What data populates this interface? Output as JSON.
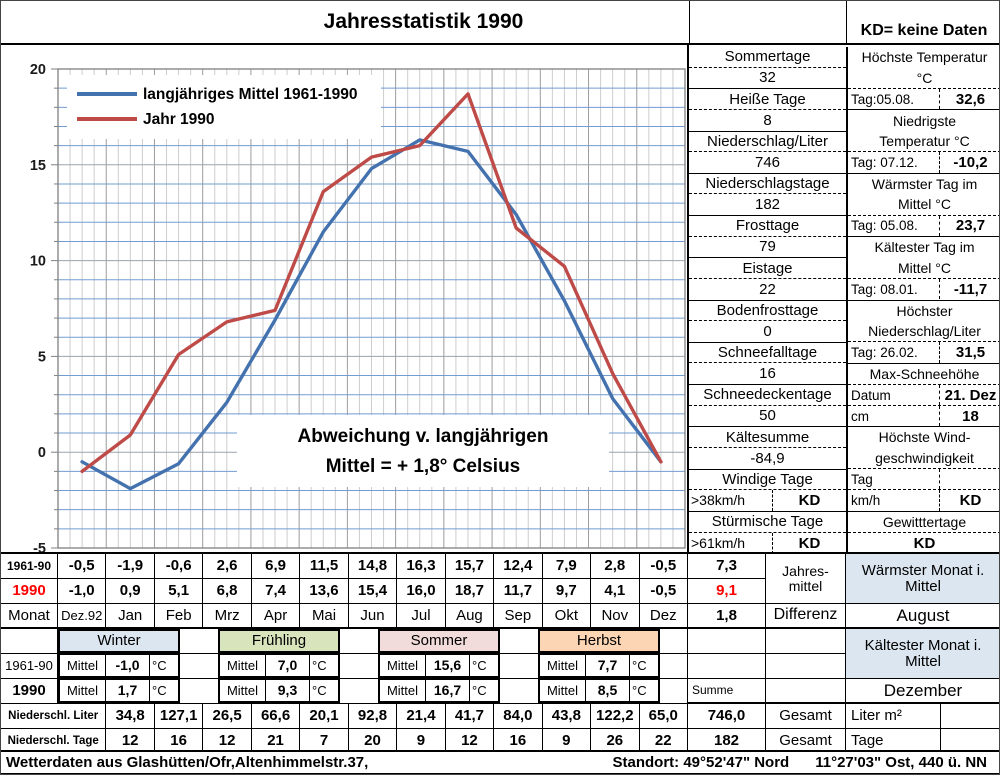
{
  "title": "Jahresstatistik 1990",
  "kd_note": "KD= keine Daten",
  "chart_data": {
    "type": "line",
    "categories": [
      "Dez.92",
      "Jan",
      "Feb",
      "Mrz",
      "Apr",
      "Mai",
      "Jun",
      "Jul",
      "Aug",
      "Sep",
      "Okt",
      "Nov",
      "Dez"
    ],
    "series": [
      {
        "name": "langjähriges Mittel 1961-1990",
        "color": "#4472AE",
        "values": [
          -0.5,
          -1.9,
          -0.6,
          2.6,
          6.9,
          11.5,
          14.8,
          16.3,
          15.7,
          12.4,
          7.9,
          2.8,
          -0.5
        ]
      },
      {
        "name": "Jahr 1990",
        "color": "#BE4B48",
        "values": [
          -1.0,
          0.9,
          5.1,
          6.8,
          7.4,
          13.6,
          15.4,
          16.0,
          18.7,
          11.7,
          9.7,
          4.1,
          -0.5
        ]
      }
    ],
    "ylim": [
      -5,
      20
    ],
    "ytick_interval": 5,
    "ytick_labels": [
      "20",
      "15",
      "10",
      "5",
      "0",
      "-5"
    ],
    "grid": true,
    "legend_position": "top-left",
    "annotation_line1": "Abweichung v. langjährigen",
    "annotation_line2": "Mittel = + 1,8° Celsius"
  },
  "stats_left": [
    {
      "name": "Sommertage",
      "value": "32"
    },
    {
      "name": "Heiße Tage",
      "value": "8"
    },
    {
      "name": "Niederschlag/Liter",
      "value": "746"
    },
    {
      "name": "Niederschlagstage",
      "value": "182"
    },
    {
      "name": "Frosttage",
      "value": "79"
    },
    {
      "name": "Eistage",
      "value": "22"
    },
    {
      "name": "Bodenfrosttage",
      "value": "0"
    },
    {
      "name": "Schneefalltage",
      "value": "16"
    },
    {
      "name": "Schneedeckentage",
      "value": "50"
    },
    {
      "name": "Kältesumme",
      "value": "-84,9"
    },
    {
      "name": "Windige Tage",
      "label": ">38km/h",
      "value": "KD"
    },
    {
      "name": "Stürmische Tage",
      "label": ">61km/h",
      "value": "KD"
    }
  ],
  "stats_right": [
    {
      "title": [
        "Höchste Temperatur",
        "°C"
      ],
      "rows": [
        {
          "label": "Tag:05.08.",
          "value": "32,6"
        }
      ]
    },
    {
      "title": [
        "Niedrigste",
        "Temperatur °C"
      ],
      "rows": [
        {
          "label": "Tag: 07.12.",
          "value": "-10,2"
        }
      ]
    },
    {
      "title": [
        "Wärmster Tag im",
        "Mittel °C"
      ],
      "rows": [
        {
          "label": "Tag: 05.08.",
          "value": "23,7"
        }
      ]
    },
    {
      "title": [
        "Kältester Tag im",
        "Mittel °C"
      ],
      "rows": [
        {
          "label": "Tag: 08.01.",
          "value": "-11,7"
        }
      ]
    },
    {
      "title": [
        "Höchster",
        "Niederschlag/Liter"
      ],
      "rows": [
        {
          "label": "Tag: 26.02.",
          "value": "31,5"
        }
      ]
    },
    {
      "title": [
        "Max-Schneehöhe"
      ],
      "rows": [
        {
          "label": "Datum",
          "value": "21. Dez"
        },
        {
          "label": "cm",
          "value": "18"
        }
      ]
    },
    {
      "title": [
        "Höchste Wind-",
        "geschwindigkeit"
      ],
      "rows": [
        {
          "label": "Tag",
          "value": ""
        },
        {
          "label": "km/h",
          "value": "KD"
        }
      ]
    },
    {
      "title": [
        "Gewitttertage"
      ],
      "rows": [
        {
          "label": "",
          "value": "KD"
        }
      ]
    }
  ],
  "monthly": {
    "row_labels": {
      "mean": "1961-90",
      "year": "1990",
      "month": "Monat"
    },
    "months": [
      "Dez.92",
      "Jan",
      "Feb",
      "Mrz",
      "Apr",
      "Mai",
      "Jun",
      "Jul",
      "Aug",
      "Sep",
      "Okt",
      "Nov",
      "Dez"
    ],
    "mean_values": [
      "-0,5",
      "-1,9",
      "-0,6",
      "2,6",
      "6,9",
      "11,5",
      "14,8",
      "16,3",
      "15,7",
      "12,4",
      "7,9",
      "2,8",
      "-0,5"
    ],
    "year_values": [
      "-1,0",
      "0,9",
      "5,1",
      "6,8",
      "7,4",
      "13,6",
      "15,4",
      "16,0",
      "18,7",
      "11,7",
      "9,7",
      "4,1",
      "-0,5"
    ],
    "annual": {
      "mean": "7,3",
      "year": "9,1",
      "diff": "1,8",
      "mean_label_1": "Jahres-",
      "mean_label_2": "mittel",
      "diff_label": "Differenz",
      "warmest_label": "Wärmster Monat i. Mittel",
      "warmest": "August",
      "coldest_label": "Kältester Monat i. Mittel",
      "coldest": "Dezember"
    }
  },
  "seasons": {
    "names": [
      "Winter",
      "Frühling",
      "Sommer",
      "Herbst"
    ],
    "colors": [
      "#DCE6F1",
      "#D8E4BC",
      "#F2DCDB",
      "#FCD5B4"
    ],
    "mittel_label": "Mittel",
    "unit": "°C",
    "mean_label": "1961-90",
    "year_label": "1990",
    "mean_values": [
      "-1,0",
      "7,0",
      "15,6",
      "7,7"
    ],
    "year_values": [
      "1,7",
      "9,3",
      "16,7",
      "8,5"
    ],
    "summe_label": "Summe"
  },
  "precip": {
    "liter_label": "Niederschl. Liter",
    "tage_label": "Niederschl. Tage",
    "liter_values": [
      "34,8",
      "127,1",
      "26,5",
      "66,6",
      "20,1",
      "92,8",
      "21,4",
      "41,7",
      "84,0",
      "43,8",
      "122,2",
      "65,0"
    ],
    "tage_values": [
      "12",
      "16",
      "12",
      "21",
      "7",
      "20",
      "9",
      "12",
      "16",
      "9",
      "26",
      "22"
    ],
    "liter_total": "746,0",
    "tage_total": "182",
    "gesamt_label": "Gesamt",
    "liter_unit": "Liter m²",
    "tage_unit": "Tage"
  },
  "footer": {
    "left": "Wetterdaten aus Glashütten/Ofr,Altenhimmelstr.37,",
    "right1": "Standort: 49°52'47\" Nord",
    "right2": "11°27'03\" Ost, 440 ü. NN"
  }
}
